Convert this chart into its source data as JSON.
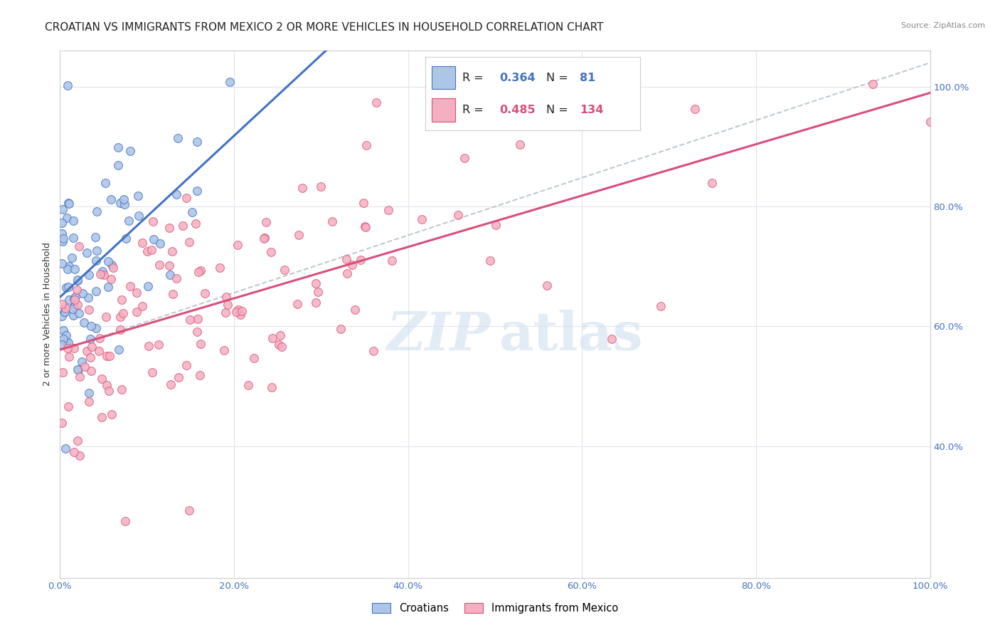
{
  "title": "CROATIAN VS IMMIGRANTS FROM MEXICO 2 OR MORE VEHICLES IN HOUSEHOLD CORRELATION CHART",
  "source": "Source: ZipAtlas.com",
  "ylabel": "2 or more Vehicles in Household",
  "blue_R": 0.364,
  "blue_N": 81,
  "pink_R": 0.485,
  "pink_N": 134,
  "blue_color": "#adc6e8",
  "pink_color": "#f5afc0",
  "blue_line_color": "#4472c4",
  "pink_line_color": "#d94f7a",
  "dashed_line_color": "#b0bcc8",
  "background_color": "#ffffff",
  "grid_color": "#e0e4ee",
  "legend_label_blue": "Croatians",
  "legend_label_pink": "Immigrants from Mexico",
  "title_fontsize": 11,
  "axis_label_fontsize": 9,
  "tick_fontsize": 9.5,
  "xlim": [
    0.0,
    1.0
  ],
  "ylim": [
    0.18,
    1.06
  ],
  "x_ticks": [
    0.0,
    0.2,
    0.4,
    0.6,
    0.8,
    1.0
  ],
  "x_ticklabels": [
    "0.0%",
    "20.0%",
    "40.0%",
    "60.0%",
    "80.0%",
    "100.0%"
  ],
  "y_ticks_right": [
    0.4,
    0.6,
    0.8,
    1.0
  ],
  "y_ticklabels_right": [
    "40.0%",
    "60.0%",
    "80.0%",
    "100.0%"
  ],
  "tick_color": "#4472c4",
  "blue_scatter_seed": 42,
  "pink_scatter_seed": 99,
  "watermark_zip_color": "#cfe0f0",
  "watermark_atlas_color": "#cfe0f0"
}
